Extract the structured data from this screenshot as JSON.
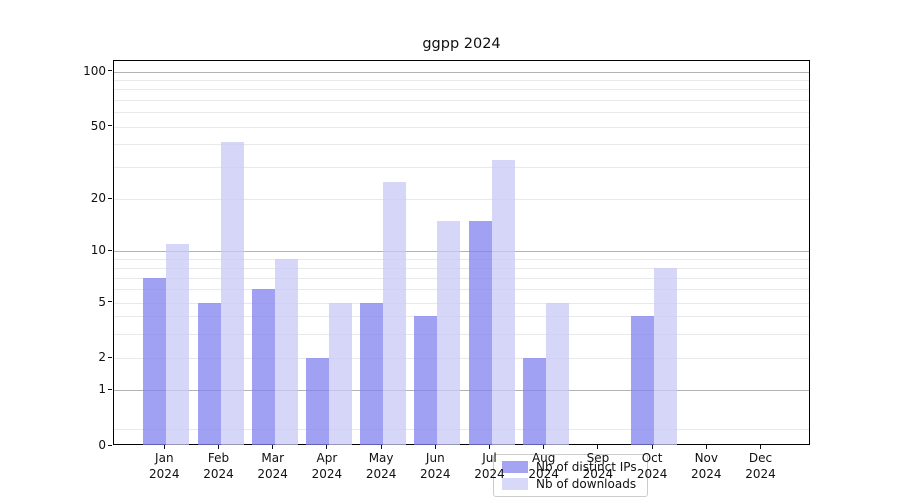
{
  "title": "ggpp 2024",
  "chart_data": {
    "type": "bar",
    "title": "ggpp 2024",
    "categories": [
      "Jan 2024",
      "Feb 2024",
      "Mar 2024",
      "Apr 2024",
      "May 2024",
      "Jun 2024",
      "Jul 2024",
      "Aug 2024",
      "Sep 2024",
      "Oct 2024",
      "Nov 2024",
      "Dec 2024"
    ],
    "series": [
      {
        "name": "Nb of distinct IPs",
        "color": "#a4a4f2",
        "fill": "rgba(130,130,240,0.75)",
        "values": [
          7,
          5,
          6,
          2,
          5,
          4,
          15,
          2,
          0,
          4,
          0,
          0
        ]
      },
      {
        "name": "Nb of downloads",
        "color": "#d8d9f9",
        "fill": "rgba(200,200,247,0.75)",
        "values": [
          11,
          41,
          9,
          5,
          25,
          15,
          33,
          5,
          0,
          8,
          0,
          0
        ]
      }
    ],
    "xlabel": "",
    "ylabel": "",
    "yticks": [
      0,
      1,
      2,
      5,
      10,
      20,
      50,
      100
    ],
    "ylim": [
      0,
      115
    ],
    "yscale": "log-like with linear segment below 1",
    "grid": true,
    "legend_position": "lower center"
  }
}
